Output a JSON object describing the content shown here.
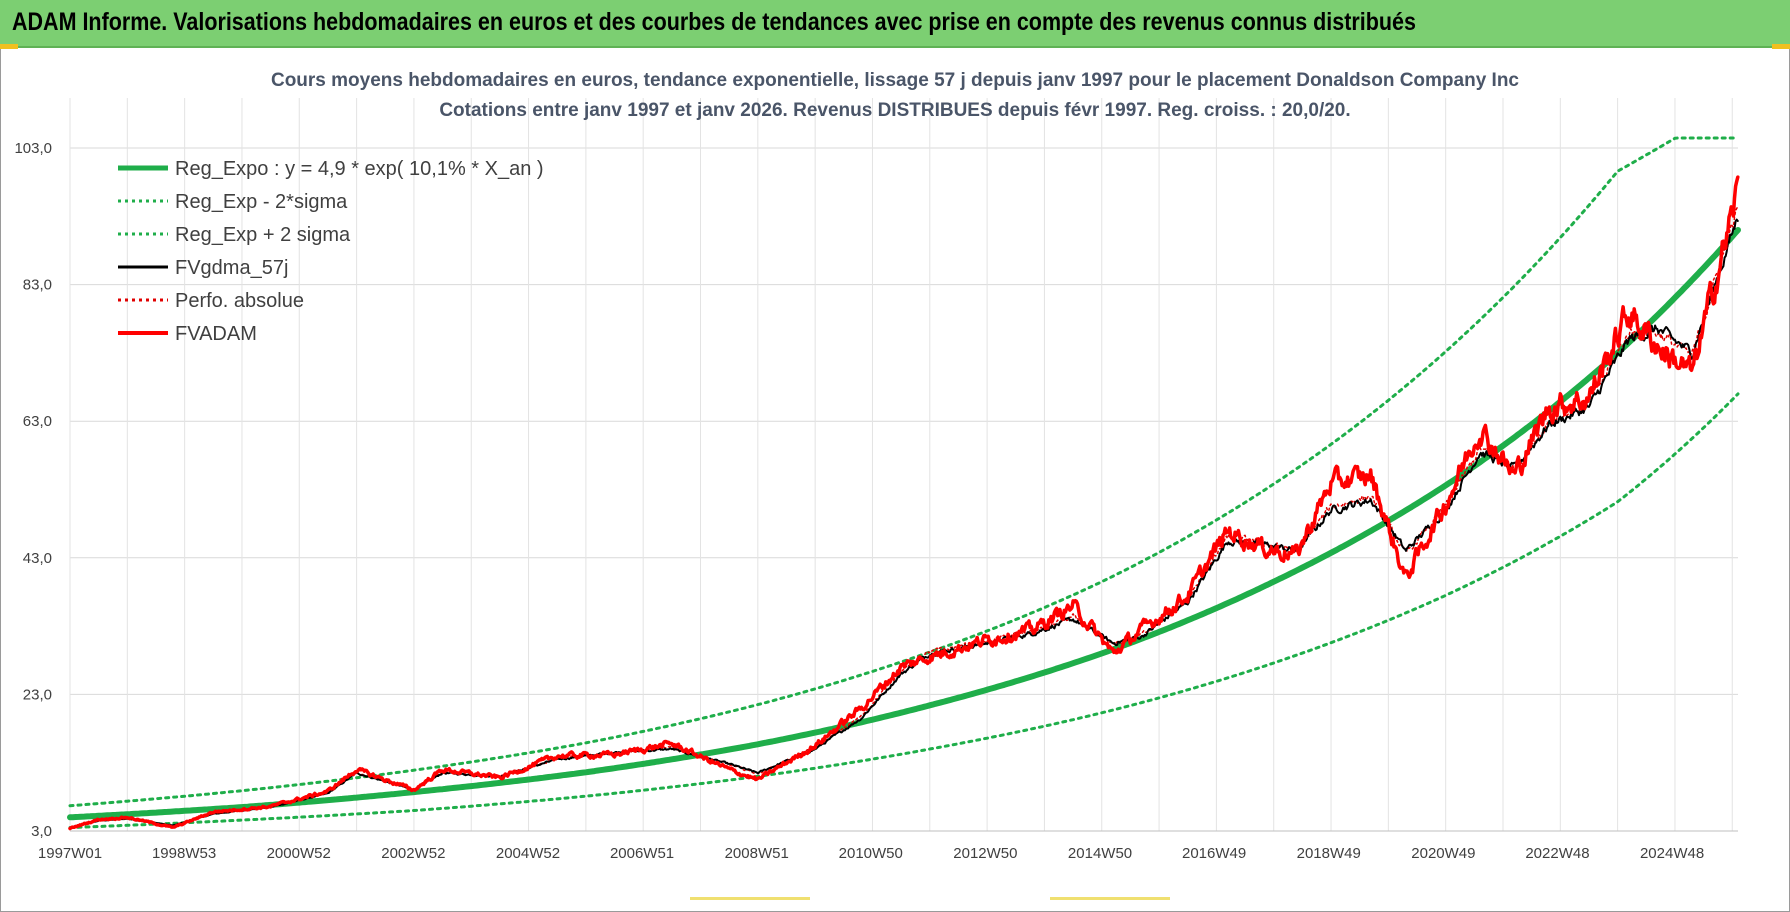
{
  "header": {
    "title": "ADAM Informe. Valorisations hebdomadaires en euros et des courbes de tendances avec prise en compte des revenus connus distribués"
  },
  "chart_data": {
    "type": "line",
    "title": "Cours moyens hebdomadaires en euros, tendance exponentielle, lissage 57 j depuis janv 1997 pour le placement Donaldson Company Inc",
    "subtitle": "Cotations entre janv 1997 et janv 2026. Revenus DISTRIBUES depuis févr 1997. Reg. croiss. : 20,0/20.",
    "xlabel": "",
    "ylabel": "",
    "xlim": [
      1997.0,
      2026.1
    ],
    "ylim": [
      3.0,
      103.0
    ],
    "x_ticks": [
      {
        "label": "1997W01",
        "x": 1997.0
      },
      {
        "label": "1998W53",
        "x": 1998.99
      },
      {
        "label": "2000W52",
        "x": 2000.99
      },
      {
        "label": "2002W52",
        "x": 2002.99
      },
      {
        "label": "2004W52",
        "x": 2004.99
      },
      {
        "label": "2006W51",
        "x": 2006.98
      },
      {
        "label": "2008W51",
        "x": 2008.98
      },
      {
        "label": "2010W50",
        "x": 2010.97
      },
      {
        "label": "2012W50",
        "x": 2012.97
      },
      {
        "label": "2014W50",
        "x": 2014.97
      },
      {
        "label": "2016W49",
        "x": 2016.96
      },
      {
        "label": "2018W49",
        "x": 2018.96
      },
      {
        "label": "2020W49",
        "x": 2020.96
      },
      {
        "label": "2022W48",
        "x": 2022.95
      },
      {
        "label": "2024W48",
        "x": 2024.95
      }
    ],
    "y_ticks": [
      "3,0",
      "23,0",
      "43,0",
      "63,0",
      "83,0",
      "103,0"
    ],
    "y_tick_values": [
      3,
      23,
      43,
      63,
      83,
      103
    ],
    "grid": true,
    "legend_position": "top-left",
    "series": [
      {
        "name": "Reg_Expo : y = 4,9 * exp( 10,1% *  X_an )",
        "color": "#1fae4a",
        "style": "solid-thick",
        "x": [
          1997.0,
          2000.0,
          2003.0,
          2006.0,
          2009.0,
          2012.0,
          2015.0,
          2018.0,
          2021.0,
          2024.0,
          2026.1
        ],
        "values": [
          5.0,
          6.5,
          8.7,
          11.6,
          15.7,
          21.4,
          29.0,
          39.5,
          53.6,
          73.0,
          91.0
        ]
      },
      {
        "name": "Reg_Exp - 2*sigma",
        "color": "#1fae4a",
        "style": "dotted",
        "x": [
          1997.0,
          2000.0,
          2003.0,
          2006.0,
          2009.0,
          2012.0,
          2015.0,
          2018.0,
          2021.0,
          2024.0,
          2026.1
        ],
        "values": [
          3.5,
          4.6,
          6.0,
          8.1,
          11.0,
          15.0,
          20.3,
          27.6,
          37.5,
          51.2,
          67.0
        ]
      },
      {
        "name": "Reg_Exp + 2 sigma",
        "color": "#1fae4a",
        "style": "dotted",
        "x": [
          1997.0,
          2000.0,
          2003.0,
          2006.0,
          2009.0,
          2012.0,
          2015.0,
          2018.0,
          2021.0,
          2024.0,
          2026.1
        ],
        "values": [
          6.7,
          8.9,
          11.9,
          15.9,
          21.5,
          29.2,
          39.5,
          53.8,
          73.2,
          99.6,
          110.0
        ]
      },
      {
        "name": "FVgdma_57j",
        "color": "#000000",
        "style": "solid",
        "x": [
          1997.0,
          1997.5,
          1998.0,
          1998.8,
          1999.5,
          2000.5,
          2001.5,
          2002.0,
          2003.0,
          2003.5,
          2004.5,
          2005.5,
          2006.5,
          2007.5,
          2008.5,
          2009.0,
          2010.0,
          2010.8,
          2011.5,
          2012.0,
          2013.0,
          2013.8,
          2014.5,
          2015.2,
          2015.7,
          2016.5,
          2017.2,
          2017.8,
          2018.4,
          2019.0,
          2019.7,
          2020.3,
          2021.0,
          2021.6,
          2022.2,
          2022.8,
          2023.5,
          2024.2,
          2024.7,
          2025.3,
          2025.9,
          2026.1
        ],
        "values": [
          3.5,
          4.5,
          4.8,
          3.8,
          5.5,
          6.5,
          8.5,
          11.5,
          9.0,
          11.5,
          11.0,
          13.5,
          14.5,
          15.0,
          12.8,
          11.5,
          15.0,
          19.5,
          26.0,
          29.0,
          30.5,
          32.0,
          34.0,
          30.5,
          31.5,
          36.5,
          45.5,
          45.0,
          44.0,
          50.0,
          51.5,
          44.0,
          50.0,
          58.5,
          56.0,
          62.5,
          65.0,
          75.0,
          76.5,
          73.0,
          88.0,
          93.0
        ]
      },
      {
        "name": "Perfo. absolue",
        "color": "#e00000",
        "style": "dotted",
        "x": [
          1997.0,
          1997.5,
          1998.0,
          1998.8,
          1999.5,
          2000.5,
          2001.5,
          2002.0,
          2003.0,
          2003.5,
          2004.5,
          2005.5,
          2006.5,
          2007.5,
          2008.5,
          2009.0,
          2010.0,
          2010.8,
          2011.5,
          2012.0,
          2013.0,
          2013.8,
          2014.5,
          2015.2,
          2015.7,
          2016.5,
          2017.2,
          2017.8,
          2018.4,
          2019.0,
          2019.7,
          2020.3,
          2021.0,
          2021.6,
          2022.2,
          2022.8,
          2023.5,
          2024.2,
          2024.7,
          2025.3,
          2025.9,
          2026.1
        ],
        "values": [
          3.5,
          4.6,
          4.9,
          3.8,
          5.6,
          6.5,
          8.6,
          11.6,
          9.0,
          11.6,
          11.0,
          13.6,
          14.5,
          15.2,
          12.7,
          11.4,
          15.2,
          19.8,
          26.5,
          29.2,
          30.8,
          32.3,
          34.3,
          30.2,
          31.8,
          36.8,
          46.0,
          45.2,
          44.0,
          50.5,
          52.0,
          43.5,
          50.5,
          59.0,
          56.0,
          63.0,
          65.5,
          76.0,
          76.0,
          72.5,
          89.0,
          94.0
        ]
      },
      {
        "name": "FVADAM",
        "color": "#ff0000",
        "style": "solid-thick",
        "x": [
          1997.0,
          1997.5,
          1998.0,
          1998.8,
          1999.5,
          2000.5,
          2001.5,
          2002.0,
          2003.0,
          2003.5,
          2004.5,
          2005.5,
          2006.5,
          2007.5,
          2008.5,
          2009.0,
          2010.0,
          2010.8,
          2011.5,
          2012.0,
          2013.0,
          2013.8,
          2014.5,
          2015.2,
          2015.7,
          2016.5,
          2017.2,
          2017.8,
          2018.4,
          2019.0,
          2019.7,
          2020.3,
          2021.0,
          2021.6,
          2022.2,
          2022.8,
          2023.5,
          2024.2,
          2024.7,
          2025.3,
          2025.9,
          2026.1
        ],
        "values": [
          3.4,
          4.7,
          5.0,
          3.5,
          5.8,
          6.6,
          8.8,
          12.0,
          9.0,
          12.0,
          10.8,
          14.0,
          14.2,
          15.8,
          12.0,
          10.5,
          15.5,
          21.0,
          27.0,
          28.5,
          31.0,
          32.5,
          36.0,
          29.0,
          32.5,
          37.5,
          47.0,
          44.5,
          43.5,
          54.0,
          55.0,
          40.0,
          51.0,
          62.0,
          55.0,
          65.0,
          66.5,
          79.0,
          74.0,
          70.0,
          90.0,
          97.0
        ]
      }
    ]
  }
}
